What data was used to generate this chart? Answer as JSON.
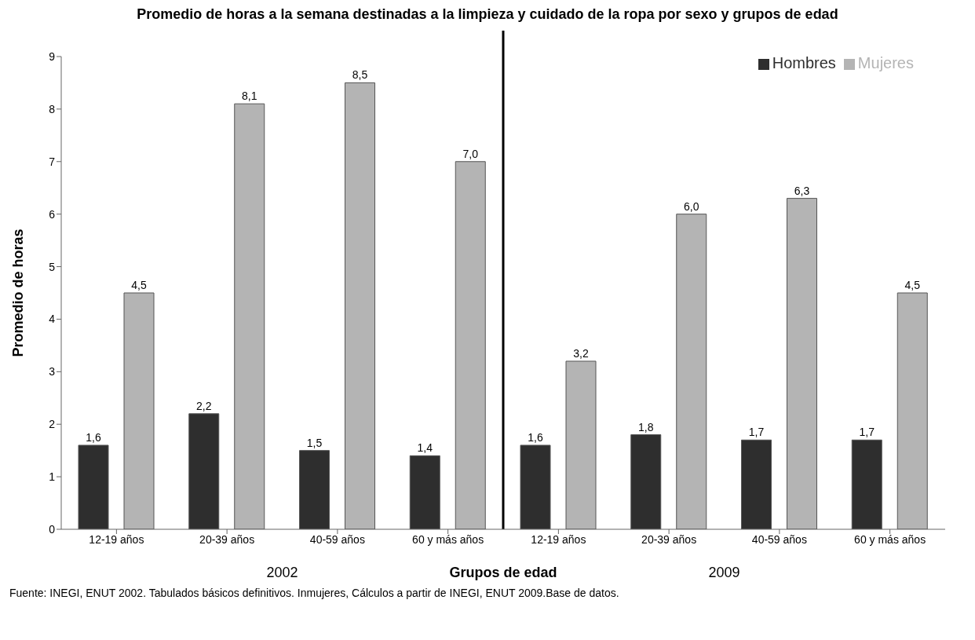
{
  "chart_data": {
    "type": "bar",
    "title": "Promedio de horas a la semana destinadas a la limpieza y cuidado de la ropa por sexo y grupos de edad",
    "xlabel": "Grupos de edad",
    "ylabel": "Promedio de horas",
    "categories": [
      "12-19 años",
      "20-39 años",
      "40-59 años",
      "60 y más años",
      "12-19 años",
      "20-39 años",
      "40-59 años",
      "60 y más años"
    ],
    "series": [
      {
        "name": "Hombres",
        "color": "#2e2e2e",
        "values": [
          1.6,
          2.2,
          1.5,
          1.4,
          1.6,
          1.8,
          1.7,
          1.7
        ],
        "value_labels": [
          "1,6",
          "2,2",
          "1,5",
          "1,4",
          "1,6",
          "1,8",
          "1,7",
          "1,7"
        ]
      },
      {
        "name": "Mujeres",
        "color": "#b4b4b4",
        "values": [
          4.5,
          8.1,
          8.5,
          7.0,
          3.2,
          6.0,
          6.3,
          4.5
        ],
        "value_labels": [
          "4,5",
          "8,1",
          "8,5",
          "7,0",
          "3,2",
          "6,0",
          "6,3",
          "4,5"
        ]
      }
    ],
    "ylim": [
      0,
      9
    ],
    "yticks": [
      0,
      1,
      2,
      3,
      4,
      5,
      6,
      7,
      8,
      9
    ],
    "grid": false,
    "legend": "top right",
    "annotations": [
      "2002",
      "2009",
      "Fuente: INEGI, ENUT 2002. Tabulados básicos definitivos. Inmujeres, Cálculos a partir de INEGI, ENUT 2009.Base de datos."
    ]
  }
}
